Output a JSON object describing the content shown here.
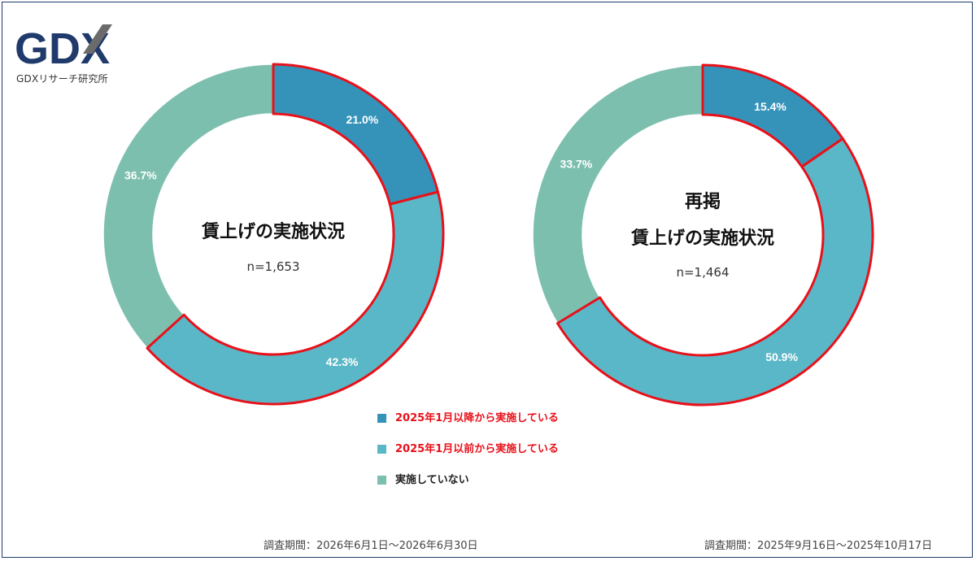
{
  "brand": {
    "logo_text": "GDX",
    "caption": "GDXリサーチ研究所",
    "logo_color": "#1f3a6b",
    "accent_color": "#6b6b6b"
  },
  "colors": {
    "after_2025_jan": "#3593ba",
    "before_2025_jan": "#5ab7c7",
    "not_implemented": "#7dbfae",
    "highlight_outline": "#e8111a"
  },
  "chart_data": [
    {
      "type": "pie",
      "donut": true,
      "title": "賃上げの実施状況",
      "sample_label": "n=1,653",
      "period": "調査期間：2026年6月1日～2026年6月30日",
      "slices": [
        {
          "label": "2025年1月以降から実施している",
          "value": 21.0,
          "value_label": "21.0%"
        },
        {
          "label": "2025年1月以前から実施している",
          "value": 42.3,
          "value_label": "42.3%"
        },
        {
          "label": "実施していない",
          "value": 36.7,
          "value_label": "36.7%"
        }
      ]
    },
    {
      "type": "pie",
      "donut": true,
      "title_line1": "再掲",
      "title": "賃上げの実施状況",
      "sample_label": "n=1,464",
      "period": "調査期間：2025年9月16日～2025年10月17日",
      "slices": [
        {
          "label": "2025年1月以降から実施している",
          "value": 15.4,
          "value_label": "15.4%"
        },
        {
          "label": "2025年1月以前から実施している",
          "value": 50.9,
          "value_label": "50.9%"
        },
        {
          "label": "実施していない",
          "value": 33.7,
          "value_label": "33.7%"
        }
      ]
    }
  ],
  "legend": [
    {
      "label": "2025年1月以降から実施している",
      "color": "#3593ba",
      "label_color": "#e8111a"
    },
    {
      "label": "2025年1月以前から実施している",
      "color": "#5ab7c7",
      "label_color": "#e8111a"
    },
    {
      "label": "実施していない",
      "color": "#7dbfae",
      "label_color": "#222222"
    }
  ]
}
